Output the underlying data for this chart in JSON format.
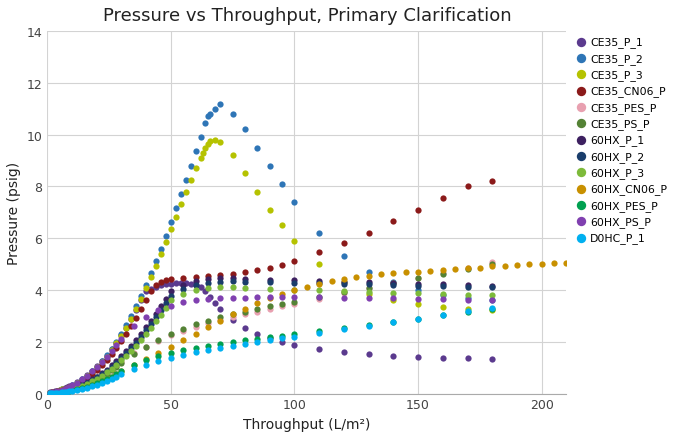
{
  "title": "Pressure vs Throughput, Primary Clarification",
  "xlabel": "Throughput (L/m²)",
  "ylabel": "Pressure (psig)",
  "xlim": [
    0,
    210
  ],
  "ylim": [
    0,
    14
  ],
  "xticks": [
    0,
    50,
    100,
    150,
    200
  ],
  "yticks": [
    0,
    2,
    4,
    6,
    8,
    10,
    12,
    14
  ],
  "series": [
    {
      "label": "CE35_P_1",
      "color": "#5b3a8e",
      "x": [
        1,
        2,
        3,
        4,
        5,
        6,
        7,
        8,
        9,
        10,
        12,
        14,
        16,
        18,
        20,
        22,
        24,
        26,
        28,
        30,
        32,
        34,
        36,
        38,
        40,
        42,
        44,
        46,
        48,
        50,
        52,
        54,
        56,
        58,
        60,
        62,
        64,
        66,
        68,
        70,
        75,
        80,
        85,
        90,
        95,
        100,
        110,
        120,
        130,
        140,
        150,
        160,
        170,
        180
      ],
      "y": [
        0.05,
        0.07,
        0.09,
        0.11,
        0.14,
        0.17,
        0.2,
        0.24,
        0.28,
        0.33,
        0.44,
        0.57,
        0.71,
        0.87,
        1.05,
        1.25,
        1.47,
        1.71,
        1.97,
        2.25,
        2.55,
        2.88,
        3.23,
        3.6,
        3.98,
        4.05,
        4.12,
        4.18,
        4.22,
        4.25,
        4.27,
        4.28,
        4.28,
        4.25,
        4.2,
        4.1,
        3.95,
        3.75,
        3.5,
        3.25,
        2.85,
        2.55,
        2.32,
        2.15,
        2.0,
        1.88,
        1.72,
        1.6,
        1.52,
        1.46,
        1.42,
        1.39,
        1.37,
        1.35
      ]
    },
    {
      "label": "CE35_P_2",
      "color": "#2e75b6",
      "x": [
        1,
        2,
        3,
        4,
        5,
        6,
        7,
        8,
        9,
        10,
        12,
        14,
        16,
        18,
        20,
        22,
        24,
        26,
        28,
        30,
        32,
        34,
        36,
        38,
        40,
        42,
        44,
        46,
        48,
        50,
        52,
        54,
        56,
        58,
        60,
        62,
        64,
        65,
        66,
        68,
        70,
        75,
        80,
        85,
        90,
        95,
        100,
        110,
        120,
        130,
        140,
        150,
        160,
        170,
        180
      ],
      "y": [
        0.04,
        0.06,
        0.08,
        0.1,
        0.13,
        0.16,
        0.19,
        0.23,
        0.27,
        0.32,
        0.43,
        0.56,
        0.7,
        0.86,
        1.04,
        1.25,
        1.48,
        1.73,
        2.01,
        2.31,
        2.64,
        3.0,
        3.38,
        3.78,
        4.2,
        4.65,
        5.12,
        5.6,
        6.1,
        6.62,
        7.15,
        7.7,
        8.25,
        8.8,
        9.35,
        9.9,
        10.45,
        10.72,
        10.8,
        11.0,
        11.2,
        10.8,
        10.2,
        9.5,
        8.8,
        8.1,
        7.4,
        6.2,
        5.3,
        4.7,
        4.3,
        4.0,
        3.8,
        3.7,
        3.6
      ]
    },
    {
      "label": "CE35_P_3",
      "color": "#b5c200",
      "x": [
        1,
        2,
        3,
        4,
        5,
        6,
        7,
        8,
        9,
        10,
        12,
        14,
        16,
        18,
        20,
        22,
        24,
        26,
        28,
        30,
        32,
        34,
        36,
        38,
        40,
        42,
        44,
        46,
        48,
        50,
        52,
        54,
        56,
        58,
        60,
        62,
        63,
        64,
        65,
        66,
        68,
        70,
        75,
        80,
        85,
        90,
        95,
        100,
        110,
        120,
        130,
        140,
        150,
        160,
        170,
        180
      ],
      "y": [
        0.04,
        0.06,
        0.08,
        0.1,
        0.13,
        0.16,
        0.19,
        0.22,
        0.26,
        0.31,
        0.42,
        0.54,
        0.68,
        0.84,
        1.01,
        1.21,
        1.43,
        1.67,
        1.94,
        2.23,
        2.55,
        2.89,
        3.26,
        3.65,
        4.06,
        4.49,
        4.93,
        5.39,
        5.86,
        6.34,
        6.83,
        7.32,
        7.8,
        8.26,
        8.7,
        9.1,
        9.3,
        9.5,
        9.65,
        9.75,
        9.8,
        9.7,
        9.2,
        8.5,
        7.8,
        7.1,
        6.5,
        5.9,
        5.0,
        4.3,
        3.85,
        3.6,
        3.45,
        3.35,
        3.28,
        3.22
      ]
    },
    {
      "label": "CE35_CN06_P",
      "color": "#8b1a1a",
      "x": [
        1,
        2,
        3,
        4,
        5,
        6,
        7,
        8,
        9,
        10,
        12,
        14,
        16,
        18,
        20,
        22,
        24,
        26,
        28,
        30,
        32,
        34,
        36,
        38,
        40,
        42,
        44,
        46,
        48,
        50,
        55,
        60,
        65,
        70,
        75,
        80,
        85,
        90,
        95,
        100,
        110,
        120,
        130,
        140,
        150,
        160,
        170,
        180
      ],
      "y": [
        0.03,
        0.05,
        0.07,
        0.09,
        0.11,
        0.14,
        0.17,
        0.2,
        0.24,
        0.28,
        0.38,
        0.49,
        0.62,
        0.76,
        0.92,
        1.1,
        1.3,
        1.52,
        1.76,
        2.02,
        2.3,
        2.6,
        2.92,
        3.26,
        3.62,
        3.98,
        4.18,
        4.3,
        4.38,
        4.42,
        4.48,
        4.52,
        4.55,
        4.58,
        4.62,
        4.68,
        4.76,
        4.86,
        4.98,
        5.12,
        5.45,
        5.8,
        6.2,
        6.65,
        7.1,
        7.55,
        8.0,
        8.2
      ]
    },
    {
      "label": "CE35_PES_P",
      "color": "#e8a0b0",
      "x": [
        1,
        2,
        3,
        4,
        5,
        6,
        7,
        8,
        9,
        10,
        12,
        14,
        16,
        18,
        20,
        22,
        24,
        26,
        28,
        30,
        35,
        40,
        45,
        50,
        55,
        60,
        65,
        70,
        75,
        80,
        85,
        90,
        95,
        100,
        110,
        120,
        130,
        140,
        150,
        160,
        170,
        180
      ],
      "y": [
        0.02,
        0.03,
        0.04,
        0.06,
        0.07,
        0.09,
        0.11,
        0.13,
        0.15,
        0.18,
        0.24,
        0.31,
        0.38,
        0.47,
        0.57,
        0.68,
        0.8,
        0.93,
        1.07,
        1.23,
        1.55,
        1.82,
        2.05,
        2.25,
        2.43,
        2.58,
        2.72,
        2.85,
        2.96,
        3.07,
        3.17,
        3.27,
        3.37,
        3.47,
        3.67,
        3.87,
        4.07,
        4.27,
        4.47,
        4.67,
        4.87,
        5.07
      ]
    },
    {
      "label": "CE35_PS_P",
      "color": "#548235",
      "x": [
        1,
        2,
        3,
        4,
        5,
        6,
        7,
        8,
        9,
        10,
        12,
        14,
        16,
        18,
        20,
        22,
        24,
        26,
        28,
        30,
        35,
        40,
        45,
        50,
        55,
        60,
        65,
        70,
        75,
        80,
        85,
        90,
        95,
        100,
        110,
        120,
        130,
        140,
        150,
        160,
        170,
        180
      ],
      "y": [
        0.02,
        0.03,
        0.04,
        0.05,
        0.07,
        0.09,
        0.1,
        0.12,
        0.14,
        0.17,
        0.23,
        0.29,
        0.37,
        0.45,
        0.54,
        0.65,
        0.77,
        0.9,
        1.04,
        1.2,
        1.53,
        1.82,
        2.08,
        2.3,
        2.5,
        2.67,
        2.82,
        2.95,
        3.06,
        3.17,
        3.27,
        3.37,
        3.46,
        3.55,
        3.73,
        3.91,
        4.09,
        4.27,
        4.45,
        4.63,
        4.81,
        4.99
      ]
    },
    {
      "label": "60HX_P_1",
      "color": "#3d2060",
      "x": [
        1,
        2,
        3,
        4,
        5,
        6,
        7,
        8,
        9,
        10,
        12,
        14,
        16,
        18,
        20,
        22,
        24,
        26,
        28,
        30,
        32,
        34,
        36,
        38,
        40,
        42,
        44,
        46,
        48,
        50,
        55,
        60,
        65,
        70,
        75,
        80,
        90,
        100,
        110,
        120,
        130,
        140,
        150,
        160,
        170,
        180
      ],
      "y": [
        0.03,
        0.04,
        0.06,
        0.07,
        0.09,
        0.11,
        0.13,
        0.15,
        0.18,
        0.21,
        0.28,
        0.36,
        0.45,
        0.55,
        0.66,
        0.79,
        0.93,
        1.09,
        1.26,
        1.44,
        1.64,
        1.85,
        2.07,
        2.31,
        2.56,
        2.82,
        3.09,
        3.37,
        3.66,
        3.95,
        4.2,
        4.35,
        4.42,
        4.45,
        4.45,
        4.43,
        4.4,
        4.37,
        4.35,
        4.32,
        4.3,
        4.27,
        4.25,
        4.22,
        4.2,
        4.17
      ]
    },
    {
      "label": "60HX_P_2",
      "color": "#1a3d6b",
      "x": [
        1,
        2,
        3,
        4,
        5,
        6,
        7,
        8,
        9,
        10,
        12,
        14,
        16,
        18,
        20,
        22,
        24,
        26,
        28,
        30,
        32,
        34,
        36,
        38,
        40,
        42,
        44,
        46,
        48,
        50,
        55,
        60,
        65,
        70,
        75,
        80,
        90,
        100,
        110,
        120,
        130,
        140,
        150,
        160,
        170,
        180
      ],
      "y": [
        0.02,
        0.03,
        0.05,
        0.06,
        0.08,
        0.1,
        0.12,
        0.14,
        0.17,
        0.2,
        0.26,
        0.34,
        0.43,
        0.52,
        0.63,
        0.75,
        0.88,
        1.03,
        1.19,
        1.37,
        1.56,
        1.76,
        1.97,
        2.2,
        2.44,
        2.69,
        2.95,
        3.22,
        3.5,
        3.78,
        4.05,
        4.2,
        4.28,
        4.32,
        4.33,
        4.32,
        4.3,
        4.28,
        4.26,
        4.24,
        4.22,
        4.2,
        4.17,
        4.15,
        4.12,
        4.1
      ]
    },
    {
      "label": "60HX_P_3",
      "color": "#7dba3a",
      "x": [
        1,
        2,
        3,
        4,
        5,
        6,
        7,
        8,
        9,
        10,
        12,
        14,
        16,
        18,
        20,
        22,
        24,
        26,
        28,
        30,
        32,
        34,
        36,
        38,
        40,
        42,
        44,
        46,
        48,
        50,
        55,
        60,
        65,
        70,
        75,
        80,
        90,
        100,
        110,
        120,
        130,
        140,
        150,
        160,
        170,
        180
      ],
      "y": [
        0.02,
        0.03,
        0.04,
        0.06,
        0.07,
        0.09,
        0.11,
        0.13,
        0.15,
        0.18,
        0.24,
        0.31,
        0.39,
        0.48,
        0.58,
        0.7,
        0.82,
        0.96,
        1.11,
        1.28,
        1.46,
        1.65,
        1.85,
        2.07,
        2.3,
        2.54,
        2.79,
        3.05,
        3.32,
        3.6,
        3.85,
        4.0,
        4.07,
        4.1,
        4.1,
        4.08,
        4.05,
        4.02,
        3.99,
        3.96,
        3.93,
        3.9,
        3.87,
        3.85,
        3.82,
        3.8
      ]
    },
    {
      "label": "60HX_CN06_P",
      "color": "#c89000",
      "x": [
        1,
        2,
        3,
        4,
        5,
        6,
        7,
        8,
        9,
        10,
        12,
        14,
        16,
        18,
        20,
        22,
        24,
        26,
        28,
        30,
        35,
        40,
        45,
        50,
        55,
        60,
        65,
        70,
        75,
        80,
        85,
        90,
        95,
        100,
        105,
        110,
        115,
        120,
        125,
        130,
        135,
        140,
        145,
        150,
        155,
        160,
        165,
        170,
        175,
        180,
        185,
        190,
        195,
        200,
        205,
        210
      ],
      "y": [
        0.02,
        0.03,
        0.03,
        0.04,
        0.05,
        0.07,
        0.08,
        0.09,
        0.11,
        0.13,
        0.17,
        0.22,
        0.27,
        0.33,
        0.4,
        0.48,
        0.56,
        0.65,
        0.75,
        0.86,
        1.09,
        1.33,
        1.57,
        1.82,
        2.07,
        2.32,
        2.57,
        2.82,
        3.06,
        3.28,
        3.49,
        3.68,
        3.85,
        4.0,
        4.13,
        4.24,
        4.34,
        4.43,
        4.5,
        4.56,
        4.61,
        4.65,
        4.68,
        4.71,
        4.74,
        4.77,
        4.8,
        4.84,
        4.87,
        4.91,
        4.94,
        4.97,
        5.0,
        5.02,
        5.04,
        5.05
      ]
    },
    {
      "label": "60HX_PES_P",
      "color": "#00a050",
      "x": [
        1,
        2,
        3,
        4,
        5,
        6,
        7,
        8,
        9,
        10,
        12,
        14,
        16,
        18,
        20,
        22,
        24,
        26,
        28,
        30,
        35,
        40,
        45,
        50,
        55,
        60,
        65,
        70,
        75,
        80,
        85,
        90,
        95,
        100,
        110,
        120,
        130,
        140,
        150,
        160,
        170,
        180
      ],
      "y": [
        0.02,
        0.02,
        0.03,
        0.04,
        0.05,
        0.06,
        0.08,
        0.09,
        0.11,
        0.13,
        0.17,
        0.22,
        0.27,
        0.33,
        0.4,
        0.48,
        0.56,
        0.65,
        0.75,
        0.86,
        1.09,
        1.28,
        1.44,
        1.57,
        1.68,
        1.77,
        1.85,
        1.92,
        1.99,
        2.06,
        2.12,
        2.18,
        2.24,
        2.3,
        2.42,
        2.54,
        2.66,
        2.78,
        2.9,
        3.02,
        3.14,
        3.26
      ]
    },
    {
      "label": "60HX_PS_P",
      "color": "#8040b0",
      "x": [
        1,
        2,
        3,
        4,
        5,
        6,
        7,
        8,
        9,
        10,
        12,
        14,
        16,
        18,
        20,
        22,
        24,
        26,
        28,
        30,
        35,
        40,
        45,
        50,
        55,
        60,
        65,
        70,
        75,
        80,
        85,
        90,
        95,
        100,
        110,
        120,
        130,
        140,
        150,
        160,
        170,
        180
      ],
      "y": [
        0.03,
        0.05,
        0.07,
        0.09,
        0.12,
        0.15,
        0.18,
        0.22,
        0.27,
        0.32,
        0.43,
        0.56,
        0.7,
        0.86,
        1.03,
        1.22,
        1.42,
        1.64,
        1.87,
        2.12,
        2.6,
        2.97,
        3.22,
        3.4,
        3.52,
        3.6,
        3.65,
        3.68,
        3.7,
        3.71,
        3.72,
        3.73,
        3.73,
        3.73,
        3.72,
        3.71,
        3.7,
        3.68,
        3.66,
        3.64,
        3.62,
        3.6
      ]
    },
    {
      "label": "D0HC_P_1",
      "color": "#00b0f0",
      "x": [
        1,
        2,
        3,
        4,
        5,
        6,
        7,
        8,
        9,
        10,
        12,
        14,
        16,
        18,
        20,
        22,
        24,
        26,
        28,
        30,
        35,
        40,
        45,
        50,
        55,
        60,
        65,
        70,
        75,
        80,
        85,
        90,
        95,
        100,
        110,
        120,
        130,
        140,
        150,
        160,
        170,
        180
      ],
      "y": [
        0.01,
        0.02,
        0.03,
        0.03,
        0.04,
        0.05,
        0.06,
        0.08,
        0.09,
        0.11,
        0.14,
        0.18,
        0.23,
        0.28,
        0.34,
        0.41,
        0.48,
        0.56,
        0.64,
        0.74,
        0.94,
        1.11,
        1.26,
        1.39,
        1.5,
        1.6,
        1.69,
        1.77,
        1.85,
        1.92,
        1.99,
        2.06,
        2.13,
        2.2,
        2.34,
        2.48,
        2.62,
        2.76,
        2.9,
        3.04,
        3.18,
        3.32
      ]
    }
  ],
  "background_color": "#ffffff",
  "grid_color": "#d3d3d3",
  "marker_size": 4.5
}
